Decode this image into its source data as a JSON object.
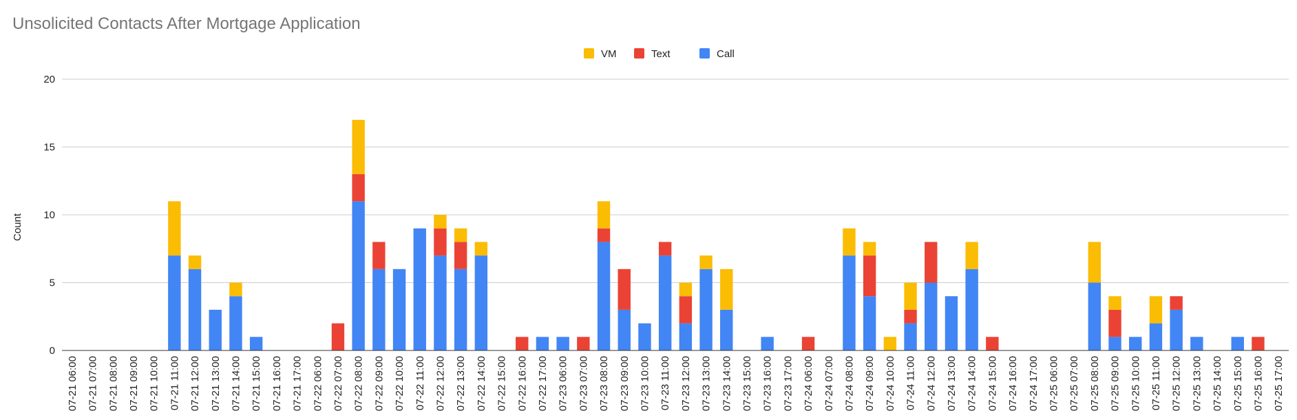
{
  "chart_data": {
    "type": "bar",
    "stacked": true,
    "title": "Unsolicited Contacts After Mortgage Application",
    "xlabel": "",
    "ylabel": "Count",
    "ylim": [
      0,
      20
    ],
    "yticks": [
      0,
      5,
      10,
      15,
      20
    ],
    "grid": true,
    "legend_position": "top",
    "categories": [
      "07-21 06:00",
      "07-21 07:00",
      "07-21 08:00",
      "07-21 09:00",
      "07-21 10:00",
      "07-21 11:00",
      "07-21 12:00",
      "07-21 13:00",
      "07-21 14:00",
      "07-21 15:00",
      "07-21 16:00",
      "07-21 17:00",
      "07-22 06:00",
      "07-22 07:00",
      "07-22 08:00",
      "07-22 09:00",
      "07-22 10:00",
      "07-22 11:00",
      "07-22 12:00",
      "07-22 13:00",
      "07-22 14:00",
      "07-22 15:00",
      "07-22 16:00",
      "07-22 17:00",
      "07-23 06:00",
      "07-23 07:00",
      "07-23 08:00",
      "07-23 09:00",
      "07-23 10:00",
      "07-23 11:00",
      "07-23 12:00",
      "07-23 13:00",
      "07-23 14:00",
      "07-23 15:00",
      "07-23 16:00",
      "07-23 17:00",
      "07-24 06:00",
      "07-24 07:00",
      "07-24 08:00",
      "07-24 09:00",
      "07-24 10:00",
      "07-24 11:00",
      "07-24 12:00",
      "07-24 13:00",
      "07-24 14:00",
      "07-24 15:00",
      "07-24 16:00",
      "07-24 17:00",
      "07-25 06:00",
      "07-25 07:00",
      "07-25 08:00",
      "07-25 09:00",
      "07-25 10:00",
      "07-25 11:00",
      "07-25 12:00",
      "07-25 13:00",
      "07-25 14:00",
      "07-25 15:00",
      "07-25 16:00",
      "07-25 17:00"
    ],
    "series": [
      {
        "name": "Call",
        "color": "#4285f4",
        "values": [
          0,
          0,
          0,
          0,
          0,
          7,
          6,
          3,
          4,
          1,
          0,
          0,
          0,
          0,
          11,
          6,
          6,
          9,
          7,
          6,
          7,
          0,
          0,
          1,
          1,
          0,
          8,
          3,
          2,
          7,
          2,
          6,
          3,
          0,
          1,
          0,
          0,
          0,
          7,
          4,
          0,
          2,
          5,
          4,
          6,
          0,
          0,
          0,
          0,
          0,
          5,
          1,
          1,
          2,
          3,
          1,
          0,
          1,
          0,
          0
        ]
      },
      {
        "name": "Text",
        "color": "#ea4335",
        "values": [
          0,
          0,
          0,
          0,
          0,
          0,
          0,
          0,
          0,
          0,
          0,
          0,
          0,
          2,
          2,
          2,
          0,
          0,
          2,
          2,
          0,
          0,
          1,
          0,
          0,
          1,
          1,
          3,
          0,
          1,
          2,
          0,
          0,
          0,
          0,
          0,
          1,
          0,
          0,
          3,
          0,
          1,
          3,
          0,
          0,
          1,
          0,
          0,
          0,
          0,
          0,
          2,
          0,
          0,
          1,
          0,
          0,
          0,
          1,
          0
        ]
      },
      {
        "name": "VM",
        "color": "#fbbc04",
        "values": [
          0,
          0,
          0,
          0,
          0,
          4,
          1,
          0,
          1,
          0,
          0,
          0,
          0,
          0,
          4,
          0,
          0,
          0,
          1,
          1,
          1,
          0,
          0,
          0,
          0,
          0,
          2,
          0,
          0,
          0,
          1,
          1,
          3,
          0,
          0,
          0,
          0,
          0,
          2,
          1,
          1,
          2,
          0,
          0,
          2,
          0,
          0,
          0,
          0,
          0,
          3,
          1,
          0,
          2,
          0,
          0,
          0,
          0,
          0,
          0
        ]
      }
    ],
    "legend": [
      {
        "name": "VM",
        "color": "#fbbc04"
      },
      {
        "name": "Text",
        "color": "#ea4335"
      },
      {
        "name": "Call",
        "color": "#4285f4"
      }
    ]
  }
}
